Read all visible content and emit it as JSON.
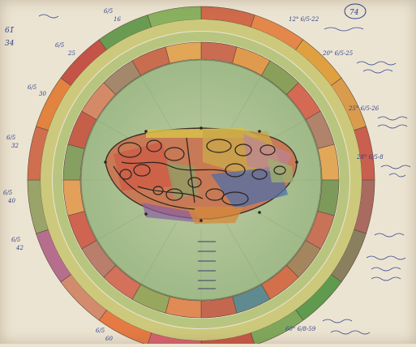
{
  "drawing": {
    "corner_marks": [
      "61̈",
      "34"
    ],
    "circled_number": "74",
    "ring_labels": [
      {
        "code": "6/5",
        "sub": "16"
      },
      {
        "code": "6/5",
        "sub": "25"
      },
      {
        "code": "6/5",
        "sub": "30"
      },
      {
        "code": "6/5",
        "sub": "32"
      },
      {
        "code": "6/5",
        "sub": "40"
      },
      {
        "code": "6/5",
        "sub": "42"
      },
      {
        "code": "6/5",
        "sub": "60"
      }
    ],
    "right_notes": [
      "12° 6/5-22",
      "20° 6/5-25",
      "25° 6/5-26",
      "28° 6/5-8",
      "60° 6/8-59"
    ],
    "scribbles": [
      "",
      "",
      "",
      "",
      ""
    ]
  },
  "colors": {
    "paper": "#ece4d2",
    "ink": "#2b3f8c",
    "outer_yellow": "#c9c878",
    "inner_green": "#a8bf8e",
    "center_green": "#b5c79b"
  }
}
